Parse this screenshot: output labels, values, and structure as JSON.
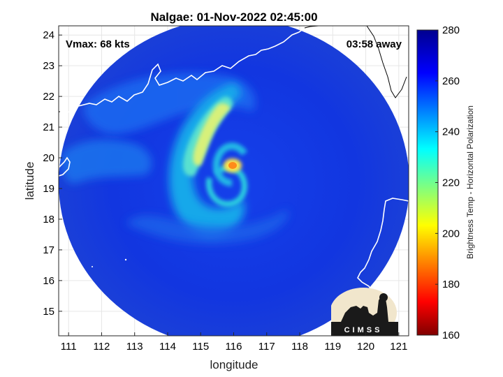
{
  "title": "Nalgae: 01-Nov-2022 02:45:00",
  "xlabel": "longitude",
  "ylabel": "latitude",
  "vmax_label": "Vmax: 68 kts",
  "time_away_label": "03:58 away",
  "colorbar": {
    "label": "Brightness Temp - Horizontal Polarization",
    "range": [
      160,
      280
    ],
    "ticks": [
      "160",
      "180",
      "200",
      "220",
      "240",
      "260",
      "280"
    ]
  },
  "logo_text": "CIMSS",
  "map": {
    "xlim": [
      110.7,
      121.3
    ],
    "ylim": [
      14.2,
      24.3
    ],
    "xticks": [
      "111",
      "112",
      "113",
      "114",
      "115",
      "116",
      "117",
      "118",
      "119",
      "120",
      "121"
    ],
    "yticks": [
      "15",
      "16",
      "17",
      "18",
      "19",
      "20",
      "21",
      "22",
      "23",
      "24"
    ],
    "swath_center": [
      115.8,
      19.25
    ],
    "eye": [
      116.0,
      19.75
    ]
  },
  "colors": {
    "background_field": "#1036e0",
    "coast": "#ffffff"
  }
}
